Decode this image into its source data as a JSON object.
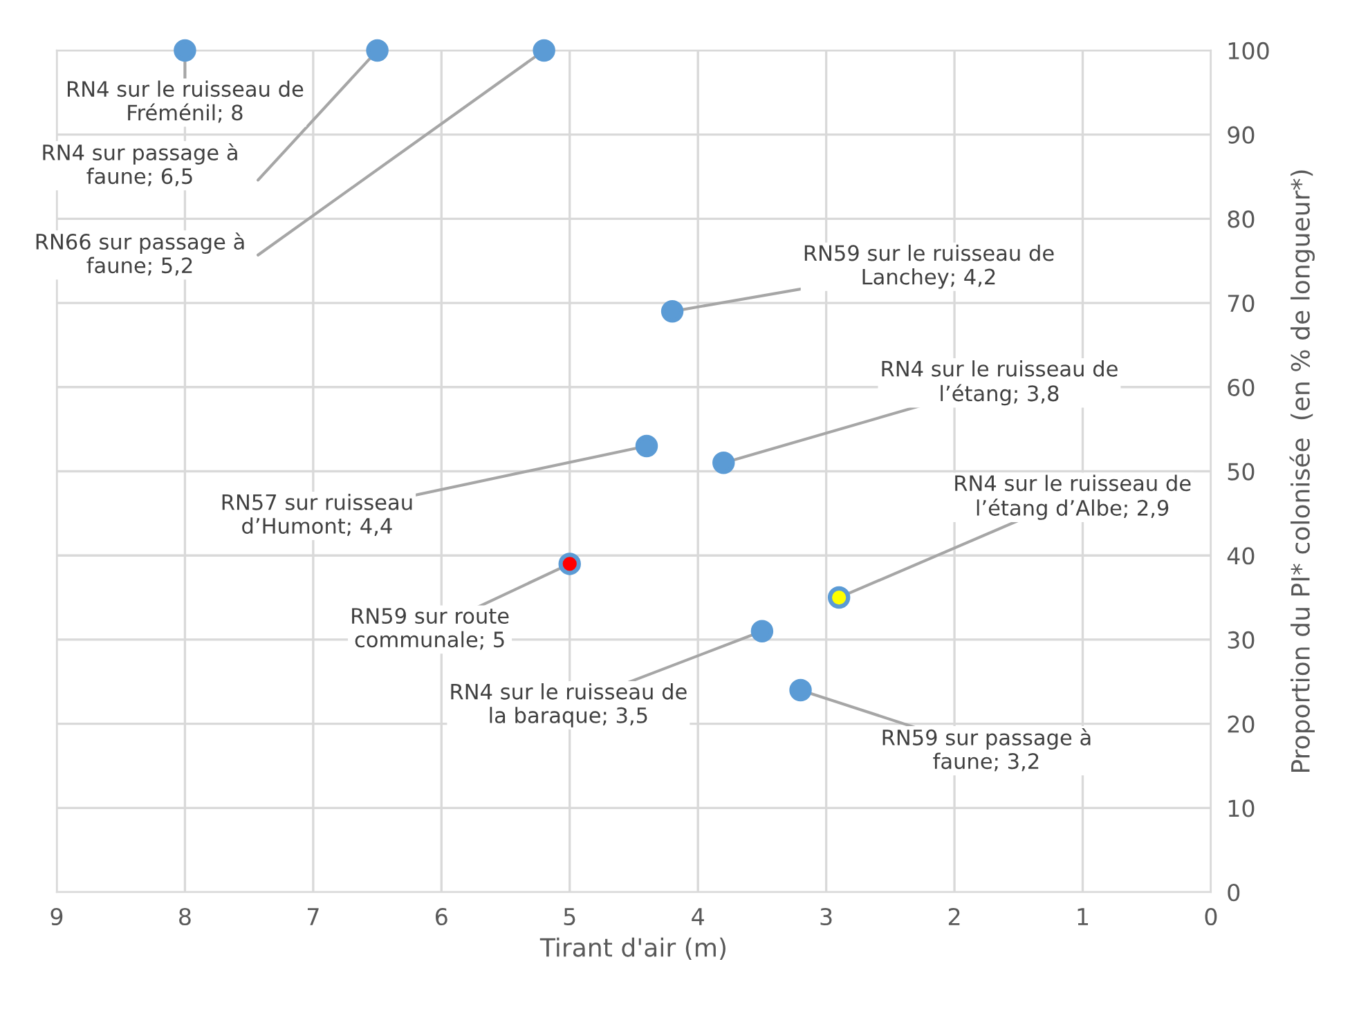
{
  "chart_data": {
    "type": "scatter",
    "xlabel": "Tirant d'air (m)",
    "ylabel": "Proportion du PI* colonisée  (en % de longueur*)",
    "x": [
      8,
      6.5,
      5.2,
      4.2,
      3.8,
      4.4,
      5,
      2.9,
      3.5,
      3.2
    ],
    "values": [
      100,
      100,
      100,
      69,
      51,
      53,
      39,
      35,
      31,
      24
    ],
    "colors": [
      "#5b9bd5",
      "#5b9bd5",
      "#5b9bd5",
      "#5b9bd5",
      "#5b9bd5",
      "#5b9bd5",
      "#ff0000",
      "#ffff00",
      "#5b9bd5",
      "#5b9bd5"
    ],
    "xlim": [
      9,
      0
    ],
    "xticks": [
      9,
      8,
      7,
      6,
      5,
      4,
      3,
      2,
      1,
      0
    ],
    "ylim": [
      0,
      100
    ],
    "yticks": [
      0,
      10,
      20,
      30,
      40,
      50,
      60,
      70,
      80,
      90,
      100
    ],
    "grid": true,
    "marker": "circle",
    "annotations": [
      {
        "text": "RN4 sur le ruisseau de\nFréménil; 8",
        "x": 8,
        "y": 100
      },
      {
        "text": "RN4 sur passage à\nfaune; 6,5",
        "x": 6.5,
        "y": 100
      },
      {
        "text": "RN66 sur passage à\nfaune; 5,2",
        "x": 5.2,
        "y": 100
      },
      {
        "text": "RN59 sur le ruisseau de\nLanchey; 4,2",
        "x": 4.2,
        "y": 69
      },
      {
        "text": "RN4 sur le ruisseau de\nl’étang; 3,8",
        "x": 3.8,
        "y": 51
      },
      {
        "text": "RN57 sur ruisseau\nd’Humont; 4,4",
        "x": 4.4,
        "y": 53
      },
      {
        "text": "RN59 sur route\ncommunale; 5",
        "x": 5,
        "y": 39
      },
      {
        "text": "RN4 sur le ruisseau de\nl’étang d’Albe; 2,9",
        "x": 2.9,
        "y": 35
      },
      {
        "text": "RN4 sur le ruisseau de\nla baraque; 3,5",
        "x": 3.5,
        "y": 31
      },
      {
        "text": "RN59 sur passage à\nfaune; 3,2",
        "x": 3.2,
        "y": 24
      }
    ]
  }
}
